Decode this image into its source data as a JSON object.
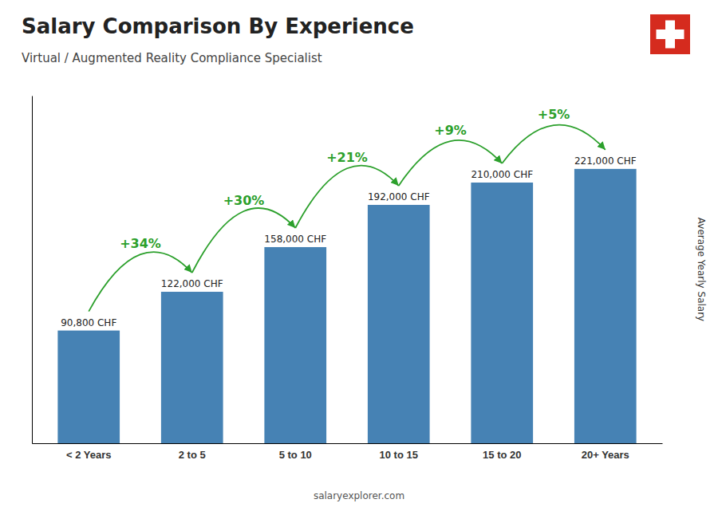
{
  "chart_data": {
    "type": "bar",
    "title": "Salary Comparison By Experience",
    "subtitle": "Virtual / Augmented Reality Compliance Specialist",
    "categories": [
      "< 2 Years",
      "2 to 5",
      "5 to 10",
      "10 to 15",
      "15 to 20",
      "20+ Years"
    ],
    "values": [
      90800,
      122000,
      158000,
      192000,
      210000,
      221000
    ],
    "value_labels": [
      "90,800 CHF",
      "122,000 CHF",
      "158,000 CHF",
      "192,000 CHF",
      "210,000 CHF",
      "221,000 CHF"
    ],
    "data_labels": true,
    "annotations": [
      "+34%",
      "+30%",
      "+21%",
      "+9%",
      "+5%"
    ],
    "ylabel": "Average Yearly Salary",
    "source": "salaryexplorer.com",
    "ylim": [
      0,
      280000
    ],
    "tick_labels": "x",
    "grid": false
  }
}
